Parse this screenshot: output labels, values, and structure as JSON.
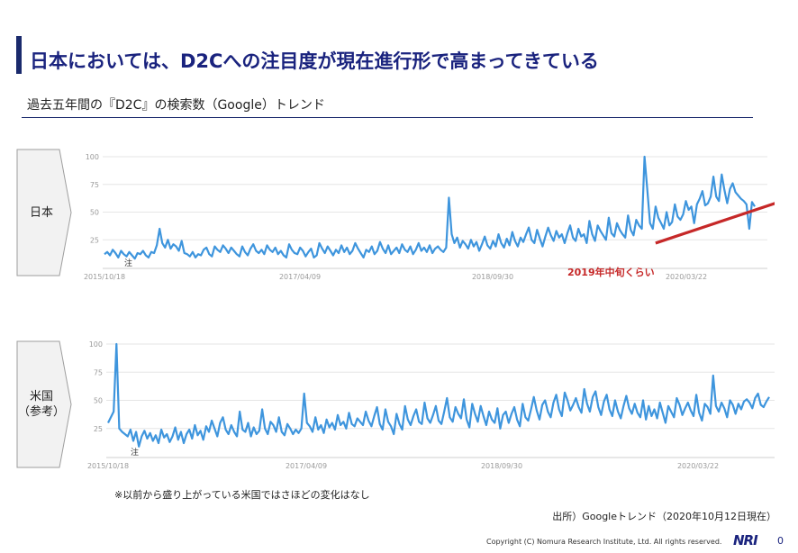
{
  "header": {
    "title": "日本においては、D2Cへの注目度が現在進行形で高まってきている",
    "subtitle": "過去五年間の『D2C』の検索数（Google）トレンド"
  },
  "labels": {
    "japan": "日本",
    "us_line1": "米国",
    "us_line2": "（参考）"
  },
  "chart_data": [
    {
      "type": "line",
      "region": "日本",
      "ylim": [
        0,
        100
      ],
      "y_ticks": [
        "100",
        "75",
        "50",
        "25"
      ],
      "x_tick_labels": [
        "2015/10/18",
        "2017/04/09",
        "2018/09/30",
        "2020/03/22"
      ],
      "note_marker": "注",
      "annotation": "2019年中旬くらい",
      "trend_arrow": {
        "from": {
          "week": 200,
          "value": 22
        },
        "to": {
          "week": 264,
          "value": 75
        }
      },
      "colors": {
        "line": "#3e95dd",
        "arrow": "#c62828",
        "annotation": "#c62828"
      },
      "values": [
        12,
        14,
        11,
        16,
        13,
        9,
        15,
        12,
        10,
        14,
        11,
        8,
        13,
        12,
        15,
        11,
        9,
        14,
        13,
        20,
        35,
        22,
        18,
        25,
        17,
        21,
        19,
        15,
        24,
        13,
        12,
        10,
        14,
        9,
        12,
        11,
        16,
        18,
        12,
        10,
        19,
        16,
        14,
        20,
        17,
        13,
        18,
        15,
        12,
        10,
        19,
        14,
        11,
        17,
        21,
        15,
        13,
        16,
        12,
        20,
        16,
        14,
        18,
        12,
        15,
        11,
        9,
        21,
        16,
        13,
        12,
        18,
        15,
        10,
        14,
        17,
        9,
        11,
        22,
        17,
        13,
        19,
        15,
        11,
        16,
        13,
        20,
        14,
        18,
        12,
        15,
        22,
        17,
        13,
        9,
        16,
        14,
        19,
        12,
        15,
        23,
        17,
        13,
        20,
        12,
        15,
        18,
        13,
        21,
        16,
        14,
        19,
        12,
        16,
        22,
        15,
        18,
        14,
        20,
        13,
        17,
        19,
        16,
        14,
        18,
        63,
        30,
        22,
        27,
        18,
        24,
        21,
        17,
        25,
        19,
        23,
        15,
        21,
        28,
        20,
        17,
        24,
        19,
        30,
        22,
        18,
        26,
        20,
        32,
        24,
        19,
        27,
        23,
        30,
        36,
        25,
        22,
        34,
        26,
        19,
        28,
        36,
        29,
        24,
        33,
        27,
        30,
        22,
        31,
        38,
        27,
        24,
        35,
        28,
        30,
        22,
        42,
        30,
        24,
        38,
        33,
        29,
        25,
        45,
        31,
        28,
        40,
        34,
        30,
        27,
        47,
        34,
        29,
        43,
        38,
        35,
        100,
        70,
        40,
        35,
        55,
        45,
        40,
        35,
        50,
        38,
        41,
        57,
        46,
        43,
        48,
        60,
        52,
        55,
        40,
        57,
        62,
        69,
        56,
        58,
        64,
        82,
        64,
        60,
        84,
        70,
        58,
        71,
        76,
        68,
        65,
        62,
        60,
        57,
        35,
        59,
        55
      ]
    },
    {
      "type": "line",
      "region": "米国（参考）",
      "ylim": [
        0,
        100
      ],
      "y_ticks": [
        "100",
        "75",
        "50",
        "25"
      ],
      "x_tick_labels": [
        "2015/10/18",
        "2017/04/09",
        "2018/09/30",
        "2020/03/22"
      ],
      "note_marker": "注",
      "colors": {
        "line": "#3e95dd"
      },
      "values": [
        30,
        35,
        40,
        100,
        25,
        22,
        20,
        18,
        24,
        14,
        22,
        9,
        18,
        23,
        16,
        21,
        14,
        19,
        12,
        24,
        17,
        20,
        13,
        18,
        26,
        15,
        22,
        12,
        20,
        24,
        16,
        28,
        19,
        23,
        15,
        27,
        22,
        32,
        25,
        18,
        30,
        35,
        24,
        20,
        28,
        22,
        18,
        40,
        24,
        22,
        30,
        18,
        26,
        20,
        23,
        42,
        25,
        20,
        31,
        28,
        22,
        35,
        22,
        19,
        29,
        25,
        20,
        24,
        21,
        25,
        56,
        30,
        27,
        22,
        35,
        24,
        28,
        21,
        33,
        26,
        30,
        24,
        37,
        28,
        31,
        25,
        39,
        29,
        27,
        34,
        31,
        28,
        40,
        32,
        27,
        36,
        44,
        29,
        24,
        42,
        31,
        27,
        20,
        38,
        29,
        24,
        45,
        33,
        28,
        36,
        42,
        31,
        29,
        48,
        34,
        30,
        37,
        45,
        32,
        29,
        40,
        52,
        35,
        31,
        44,
        38,
        34,
        51,
        33,
        26,
        47,
        38,
        31,
        45,
        36,
        28,
        40,
        33,
        30,
        43,
        25,
        37,
        40,
        30,
        38,
        44,
        33,
        27,
        47,
        35,
        32,
        42,
        53,
        41,
        33,
        46,
        50,
        40,
        35,
        48,
        55,
        42,
        36,
        57,
        50,
        41,
        46,
        52,
        44,
        39,
        60,
        47,
        40,
        53,
        58,
        44,
        37,
        49,
        55,
        42,
        36,
        50,
        40,
        34,
        45,
        54,
        43,
        38,
        47,
        39,
        35,
        50,
        33,
        45,
        36,
        42,
        34,
        48,
        39,
        30,
        45,
        40,
        35,
        52,
        46,
        37,
        43,
        48,
        41,
        36,
        55,
        39,
        32,
        47,
        44,
        38,
        72,
        45,
        40,
        48,
        43,
        35,
        50,
        46,
        38,
        47,
        42,
        49,
        51,
        48,
        43,
        52,
        56,
        46,
        44,
        49,
        53
      ]
    }
  ],
  "footer": {
    "note": "※以前から盛り上がっている米国ではさほどの変化はなし",
    "source": "出所）Googleトレンド（2020年10月12日現在）",
    "copyright": "Copyright (C)   Nomura Research Institute, Ltd. All rights reserved.",
    "logo": "NRI",
    "page_number": "0"
  }
}
